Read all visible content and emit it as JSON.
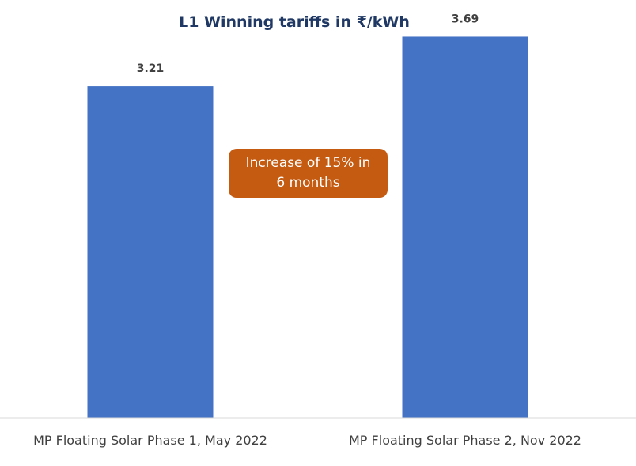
{
  "chart_data": {
    "type": "bar",
    "title": "L1 Winning tariffs in ₹/kWh",
    "categories": [
      "MP Floating Solar Phase 1, May 2022",
      "MP Floating Solar Phase 2, Nov 2022"
    ],
    "values": [
      3.21,
      3.69
    ],
    "data_labels": [
      "3.21",
      "3.69"
    ],
    "xlabel": "",
    "ylabel": "",
    "ylim": [
      0,
      4.0
    ],
    "grid": false,
    "legend": "none",
    "annotation": {
      "line1": "Increase of 15% in",
      "line2": "6 months"
    }
  },
  "colors": {
    "bar": "#4472C4",
    "title": "#1F3864",
    "data_label": "#404040",
    "axis_label": "#404040",
    "axis_line": "#D9D9D9",
    "callout_fill": "#C55A11",
    "callout_text": "#FFFFFF"
  }
}
